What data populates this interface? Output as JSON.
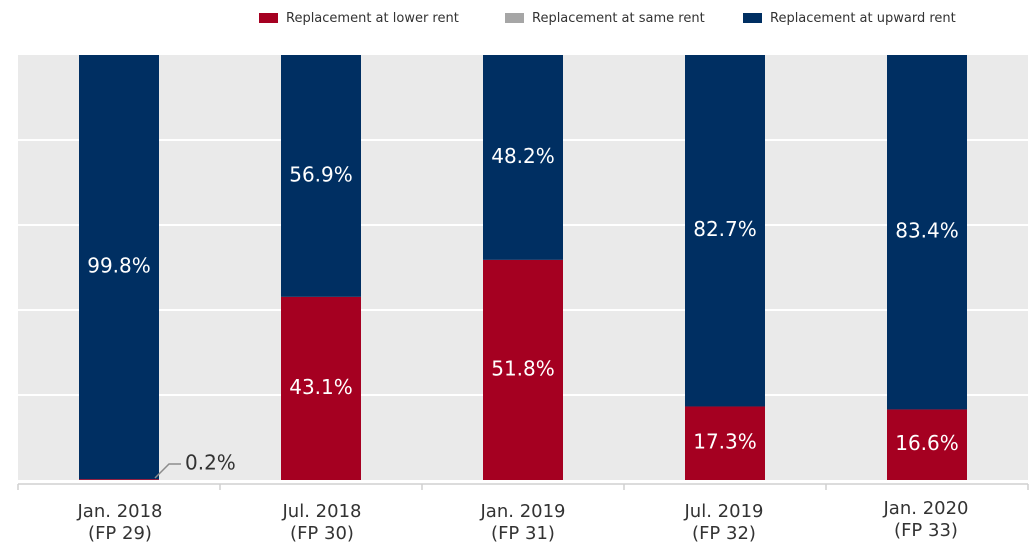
{
  "legend": [
    {
      "label": "Replacement at lower rent",
      "color": "#a50021"
    },
    {
      "label": "Replacement at same rent",
      "color": "#a6a6a6"
    },
    {
      "label": "Replacement at upward rent",
      "color": "#002f62"
    }
  ],
  "categories": [
    {
      "line1": "Jan. 2018",
      "line2": "(FP 29)"
    },
    {
      "line1": "Jul. 2018",
      "line2": "(FP 30)"
    },
    {
      "line1": "Jan. 2019",
      "line2": "(FP 31)"
    },
    {
      "line1": "Jul. 2019",
      "line2": "(FP 32)"
    },
    {
      "line1": "Jan. 2020",
      "line2": "(FP 33)"
    }
  ],
  "chart_data": {
    "type": "bar",
    "stacked": true,
    "categories": [
      "Jan. 2018 (FP 29)",
      "Jul. 2018 (FP 30)",
      "Jan. 2019 (FP 31)",
      "Jul. 2019 (FP 32)",
      "Jan. 2020 (FP 33)"
    ],
    "series": [
      {
        "name": "Replacement at lower rent",
        "color": "#a50021",
        "values": [
          0.2,
          43.1,
          51.8,
          17.3,
          16.6
        ],
        "labels": [
          "0.2%",
          "43.1%",
          "51.8%",
          "17.3%",
          "16.6%"
        ]
      },
      {
        "name": "Replacement at same rent",
        "color": "#a6a6a6",
        "values": [
          0,
          0,
          0,
          0,
          0
        ]
      },
      {
        "name": "Replacement at upward rent",
        "color": "#002f62",
        "values": [
          99.8,
          56.9,
          48.2,
          82.7,
          83.4
        ],
        "labels": [
          "99.8%",
          "56.9%",
          "48.2%",
          "82.7%",
          "83.4%"
        ]
      }
    ],
    "ylim": [
      0,
      100
    ],
    "grid": true,
    "legend_position": "top-right"
  }
}
